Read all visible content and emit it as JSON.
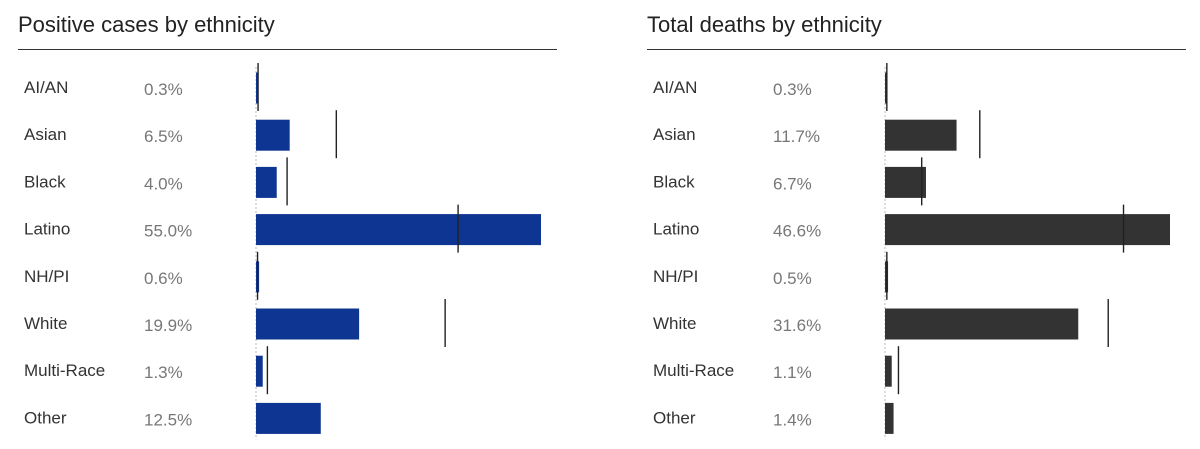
{
  "colors": {
    "cases_bar": "#0d3591",
    "deaths_bar": "#333333",
    "marker": "#222222",
    "baseline": "#bbbbbb"
  },
  "chart_data": [
    {
      "type": "bar",
      "orientation": "horizontal",
      "title": "Positive cases by ethnicity",
      "categories": [
        "AI/AN",
        "Asian",
        "Black",
        "Latino",
        "NH/PI",
        "White",
        "Multi-Race",
        "Other"
      ],
      "value_labels": [
        "0.3%",
        "6.5%",
        "4.0%",
        "55.0%",
        "0.6%",
        "19.9%",
        "1.3%",
        "12.5%"
      ],
      "values": [
        0.3,
        6.5,
        4.0,
        55.0,
        0.6,
        19.9,
        1.3,
        12.5
      ],
      "reference_markers": [
        0.4,
        15.5,
        6.0,
        39.0,
        0.3,
        36.5,
        2.2,
        null
      ],
      "xlim": [
        0,
        55
      ],
      "grid": false
    },
    {
      "type": "bar",
      "orientation": "horizontal",
      "title": "Total deaths by ethnicity",
      "categories": [
        "AI/AN",
        "Asian",
        "Black",
        "Latino",
        "NH/PI",
        "White",
        "Multi-Race",
        "Other"
      ],
      "value_labels": [
        "0.3%",
        "11.7%",
        "6.7%",
        "46.6%",
        "0.5%",
        "31.6%",
        "1.1%",
        "1.4%"
      ],
      "values": [
        0.3,
        11.7,
        6.7,
        46.6,
        0.5,
        31.6,
        1.1,
        1.4
      ],
      "reference_markers": [
        0.3,
        15.5,
        6.0,
        39.0,
        0.3,
        36.5,
        2.2,
        null
      ],
      "xlim": [
        0,
        46.6
      ],
      "grid": false
    }
  ]
}
